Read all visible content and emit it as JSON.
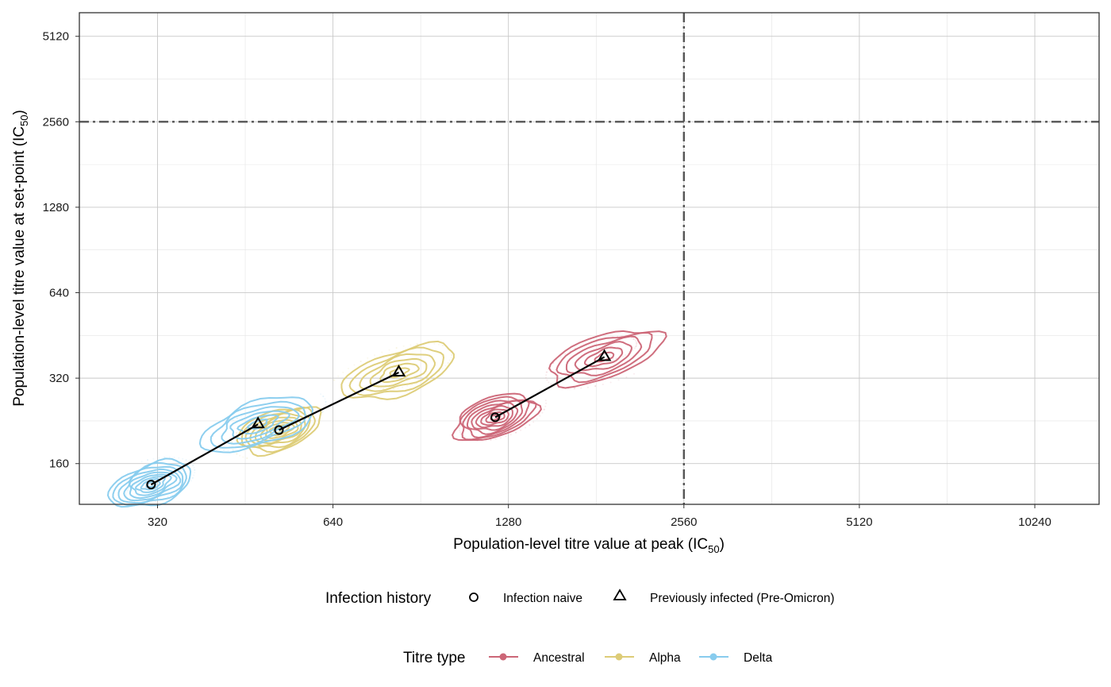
{
  "chart_data": {
    "type": "scatter",
    "scale": "log2",
    "xlabel": "Population-level titre value at peak (IC",
    "xlabel_sub": "50",
    "xlabel_end": ")",
    "ylabel": "Population-level titre value at set-point (IC",
    "ylabel_sub": "50",
    "ylabel_end": ")",
    "xlim": [
      235,
      13200
    ],
    "ylim": [
      115,
      6200
    ],
    "x_ticks": [
      320,
      640,
      1280,
      2560,
      5120,
      10240
    ],
    "y_ticks": [
      160,
      320,
      640,
      1280,
      2560,
      5120
    ],
    "x_tick_labels": [
      "320",
      "640",
      "1280",
      "2560",
      "5120",
      "10240"
    ],
    "y_tick_labels": [
      "160",
      "320",
      "640",
      "1280",
      "2560",
      "5120"
    ],
    "reference_lines": {
      "x": 2560,
      "y": 2560,
      "style": "dash-dot"
    },
    "grid": true,
    "series": [
      {
        "name": "Ancestral",
        "color": "#CC6677",
        "points": [
          {
            "history": "Infection naive",
            "x": 1215,
            "y": 233
          },
          {
            "history": "Previously infected (Pre-Omicron)",
            "x": 1870,
            "y": 380
          }
        ]
      },
      {
        "name": "Alpha",
        "color": "#DDCC77",
        "points": [
          {
            "history": "Infection naive",
            "x": 517,
            "y": 210
          },
          {
            "history": "Previously infected (Pre-Omicron)",
            "x": 830,
            "y": 335
          }
        ]
      },
      {
        "name": "Delta",
        "color": "#88CCEE",
        "points": [
          {
            "history": "Infection naive",
            "x": 312,
            "y": 135
          },
          {
            "history": "Previously infected (Pre-Omicron)",
            "x": 476,
            "y": 220
          }
        ]
      }
    ],
    "legend": {
      "placement": "bottom",
      "infection_history": {
        "title": "Infection history",
        "items": [
          {
            "label": "Infection naive",
            "shape": "circle"
          },
          {
            "label": "Previously infected (Pre-Omicron)",
            "shape": "triangle"
          }
        ]
      },
      "titre_type": {
        "title": "Titre type",
        "items": [
          {
            "label": "Ancestral",
            "color": "#CC6677"
          },
          {
            "label": "Alpha",
            "color": "#DDCC77"
          },
          {
            "label": "Delta",
            "color": "#88CCEE"
          }
        ]
      }
    }
  }
}
